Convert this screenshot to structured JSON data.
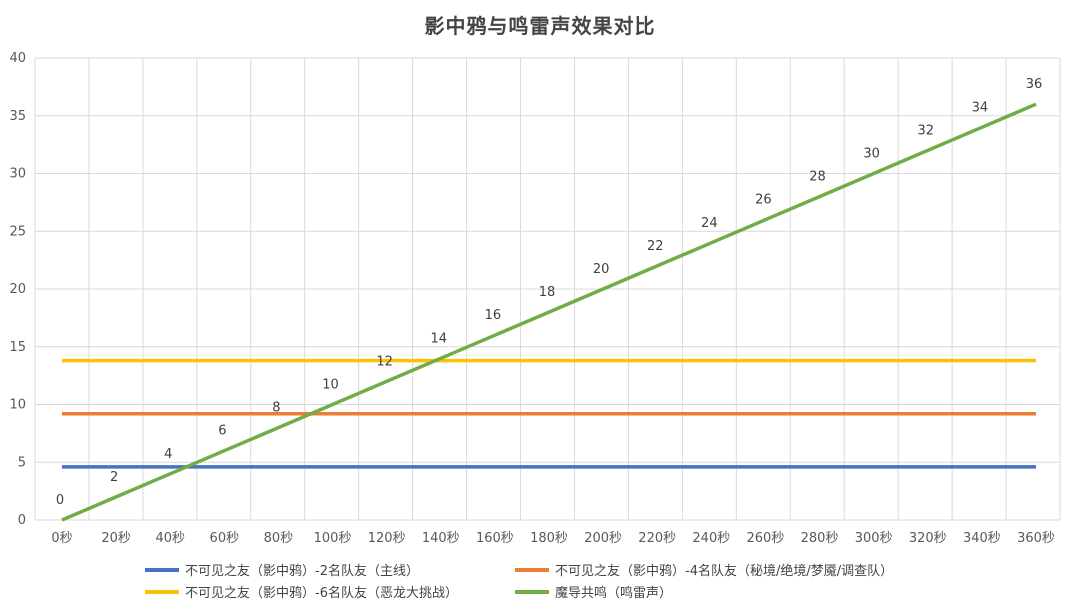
{
  "chart_data": {
    "type": "line",
    "title": "影中鸦与鸣雷声效果对比",
    "xlabel": "",
    "ylabel": "",
    "ylim": [
      0,
      40
    ],
    "yticks": [
      0,
      5,
      10,
      15,
      20,
      25,
      30,
      35,
      40
    ],
    "grid": true,
    "legend_position": "bottom",
    "categories": [
      "0秒",
      "20秒",
      "40秒",
      "60秒",
      "80秒",
      "100秒",
      "120秒",
      "140秒",
      "160秒",
      "180秒",
      "200秒",
      "220秒",
      "240秒",
      "260秒",
      "280秒",
      "300秒",
      "320秒",
      "340秒",
      "360秒"
    ],
    "series": [
      {
        "name": "不可见之友（影中鸦）-2名队友（主线）",
        "color": "#4472C4",
        "values": [
          4.6,
          4.6,
          4.6,
          4.6,
          4.6,
          4.6,
          4.6,
          4.6,
          4.6,
          4.6,
          4.6,
          4.6,
          4.6,
          4.6,
          4.6,
          4.6,
          4.6,
          4.6,
          4.6
        ]
      },
      {
        "name": "不可见之友（影中鸦）-4名队友（秘境/绝境/梦魇/调查队）",
        "color": "#ED7D31",
        "values": [
          9.2,
          9.2,
          9.2,
          9.2,
          9.2,
          9.2,
          9.2,
          9.2,
          9.2,
          9.2,
          9.2,
          9.2,
          9.2,
          9.2,
          9.2,
          9.2,
          9.2,
          9.2,
          9.2
        ]
      },
      {
        "name": "不可见之友（影中鸦）-6名队友（恶龙大挑战）",
        "color": "#FFC000",
        "values": [
          13.8,
          13.8,
          13.8,
          13.8,
          13.8,
          13.8,
          13.8,
          13.8,
          13.8,
          13.8,
          13.8,
          13.8,
          13.8,
          13.8,
          13.8,
          13.8,
          13.8,
          13.8,
          13.8
        ]
      },
      {
        "name": "魔导共鸣（鸣雷声）",
        "color": "#70AD47",
        "values": [
          0,
          2,
          4,
          6,
          8,
          10,
          12,
          14,
          16,
          18,
          20,
          22,
          24,
          26,
          28,
          30,
          32,
          34,
          36
        ],
        "labels": [
          "0",
          "2",
          "4",
          "6",
          "8",
          "10",
          "12",
          "14",
          "16",
          "18",
          "20",
          "22",
          "24",
          "26",
          "28",
          "30",
          "32",
          "34",
          "36"
        ]
      }
    ]
  }
}
